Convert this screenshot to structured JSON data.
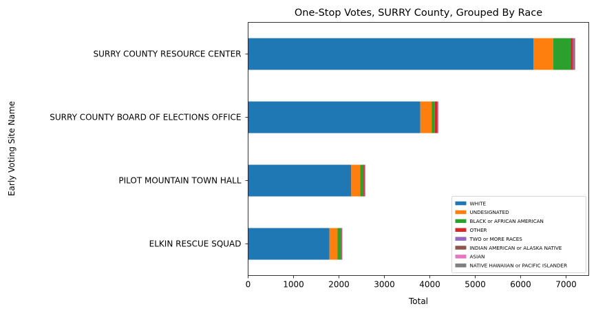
{
  "chart_data": {
    "type": "bar",
    "orientation": "horizontal",
    "stacked": true,
    "title": "One-Stop Votes, SURRY County, Grouped By Race",
    "xlabel": "Total",
    "ylabel": "Early Voting Site Name",
    "xlim": [
      0,
      7500
    ],
    "xticks": [
      0,
      1000,
      2000,
      3000,
      4000,
      5000,
      6000,
      7000
    ],
    "grid": false,
    "legend_position": "lower-right",
    "categories": [
      "SURRY COUNTY RESOURCE CENTER",
      "SURRY COUNTY BOARD OF ELECTIONS OFFICE",
      "PILOT MOUNTAIN TOWN HALL",
      "ELKIN RESCUE SQUAD"
    ],
    "series": [
      {
        "name": "WHITE",
        "color": "#1f77b4",
        "values": [
          6280,
          3790,
          2270,
          1790
        ]
      },
      {
        "name": "UNDESIGNATED",
        "color": "#ff7f0e",
        "values": [
          440,
          250,
          200,
          180
        ]
      },
      {
        "name": "BLACK or AFRICAN AMERICAN",
        "color": "#2ca02c",
        "values": [
          380,
          70,
          70,
          80
        ]
      },
      {
        "name": "OTHER",
        "color": "#d62728",
        "values": [
          50,
          60,
          20,
          10
        ]
      },
      {
        "name": "TWO or MORE RACES",
        "color": "#9467bd",
        "values": [
          30,
          10,
          10,
          5
        ]
      },
      {
        "name": "INDIAN AMERICAN or ALASKA NATIVE",
        "color": "#8c564b",
        "values": [
          10,
          5,
          5,
          5
        ]
      },
      {
        "name": "ASIAN",
        "color": "#e377c2",
        "values": [
          10,
          5,
          5,
          5
        ]
      },
      {
        "name": "NATIVE HAWAIIAN or PACIFIC ISLANDER",
        "color": "#7f7f7f",
        "values": [
          5,
          2,
          2,
          2
        ]
      }
    ]
  }
}
